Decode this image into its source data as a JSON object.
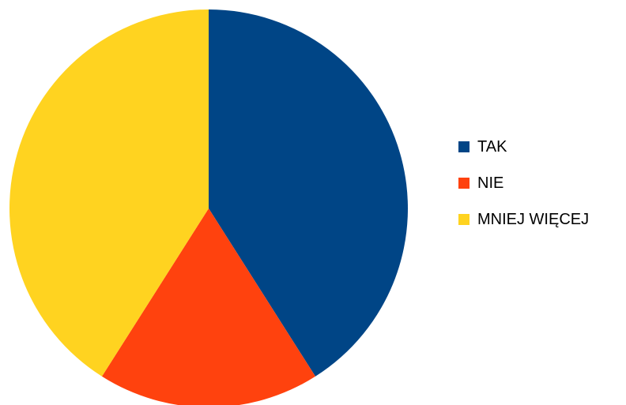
{
  "chart_data": {
    "type": "pie",
    "title": "",
    "categories": [
      "TAK",
      "NIE",
      "MNIEJ WIĘCEJ"
    ],
    "values": [
      41,
      18,
      41
    ],
    "colors": [
      "#004586",
      "#ff420e",
      "#ffd320"
    ],
    "start_angle_deg": 0,
    "direction": "clockwise",
    "legend_position": "right"
  }
}
